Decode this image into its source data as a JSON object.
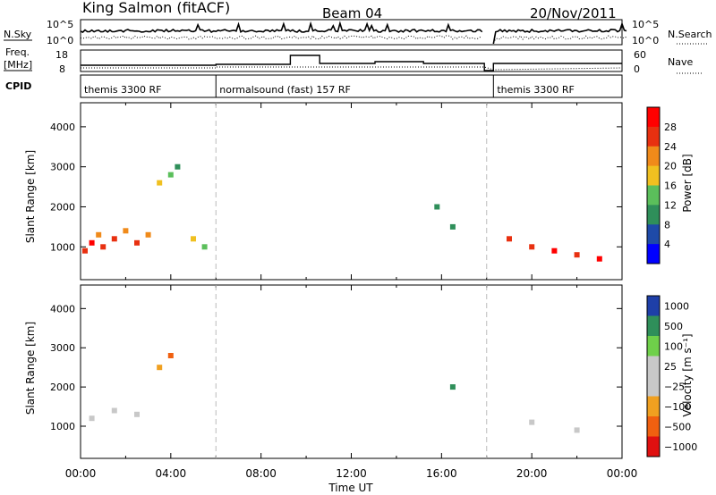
{
  "header": {
    "station": "King Salmon (fitACF)",
    "beam": "Beam 04",
    "date": "20/Nov/2011"
  },
  "status_panels": {
    "nsky_label": "N.Sky",
    "nsky_ticks": [
      "10^5",
      "10^0"
    ],
    "nsearch_label": "N.Search",
    "nsearch_ticks": [
      "10^5",
      "10^0"
    ],
    "freq_label_line1": "Freq.",
    "freq_label_line2": "[MHz]",
    "freq_ticks": [
      "18",
      "8"
    ],
    "nave_label": "Nave",
    "nave_ticks": [
      "60",
      "0"
    ],
    "cpid_label": "CPID",
    "cpid_segments": [
      {
        "label": "themis 3300 RF",
        "start": 0,
        "end": 6
      },
      {
        "label": "normalsound (fast) 157 RF",
        "start": 6,
        "end": 18
      },
      {
        "label": "themis 3300 RF",
        "start": 18.3,
        "end": 24
      }
    ]
  },
  "chart_data": [
    {
      "type": "heatmap",
      "panel": "power",
      "title": "",
      "xlabel": "",
      "ylabel": "Slant Range [km]",
      "xlim": [
        0,
        24
      ],
      "ylim": [
        180,
        4600
      ],
      "y_ticks": [
        1000,
        2000,
        3000,
        4000
      ],
      "colorbar_label": "Power [dB]",
      "colorbar_ticks": [
        4,
        8,
        12,
        16,
        20,
        24,
        28
      ],
      "colorbar_range": [
        0,
        32
      ],
      "colorbar_colors": [
        "#0000ff",
        "#1e4aa8",
        "#2f8f5a",
        "#5bbf5b",
        "#f0c020",
        "#f08a1a",
        "#e83010",
        "#ff0000"
      ],
      "cells": [
        {
          "t": 0.2,
          "r": 900,
          "v": 26
        },
        {
          "t": 0.5,
          "r": 1100,
          "v": 28
        },
        {
          "t": 0.8,
          "r": 1300,
          "v": 22
        },
        {
          "t": 1.0,
          "r": 1000,
          "v": 27
        },
        {
          "t": 1.5,
          "r": 1200,
          "v": 24
        },
        {
          "t": 2.0,
          "r": 1400,
          "v": 20
        },
        {
          "t": 2.5,
          "r": 1100,
          "v": 25
        },
        {
          "t": 3.0,
          "r": 1300,
          "v": 22
        },
        {
          "t": 3.5,
          "r": 2600,
          "v": 18
        },
        {
          "t": 4.0,
          "r": 2800,
          "v": 14
        },
        {
          "t": 4.3,
          "r": 3000,
          "v": 10
        },
        {
          "t": 5.0,
          "r": 1200,
          "v": 16
        },
        {
          "t": 5.5,
          "r": 1000,
          "v": 14
        },
        {
          "t": 15.8,
          "r": 2000,
          "v": 10
        },
        {
          "t": 16.5,
          "r": 1500,
          "v": 8
        },
        {
          "t": 19.0,
          "r": 1200,
          "v": 24
        },
        {
          "t": 20.0,
          "r": 1000,
          "v": 26
        },
        {
          "t": 21.0,
          "r": 900,
          "v": 28
        },
        {
          "t": 22.0,
          "r": 800,
          "v": 26
        },
        {
          "t": 23.0,
          "r": 700,
          "v": 28
        }
      ]
    },
    {
      "type": "heatmap",
      "panel": "velocity",
      "title": "",
      "xlabel": "Time UT",
      "ylabel": "Slant Range [km]",
      "xlim": [
        0,
        24
      ],
      "ylim": [
        180,
        4600
      ],
      "y_ticks": [
        1000,
        2000,
        3000,
        4000
      ],
      "x_tick_labels": [
        "00:00",
        "04:00",
        "08:00",
        "12:00",
        "16:00",
        "20:00",
        "00:00"
      ],
      "colorbar_label": "Velocity [m s⁻¹]",
      "colorbar_ticks": [
        "1000",
        "500",
        "100",
        "25",
        "−25",
        "−100",
        "−500",
        "−1000"
      ],
      "colorbar_colors": [
        "#1e3fa8",
        "#2f8f5a",
        "#6fd04a",
        "#c8c8c8",
        "#c8c8c8",
        "#f0a020",
        "#f06010",
        "#e01010"
      ],
      "cells": [
        {
          "t": 0.5,
          "r": 1200,
          "v": 0
        },
        {
          "t": 1.5,
          "r": 1400,
          "v": 0
        },
        {
          "t": 2.5,
          "r": 1300,
          "v": 0
        },
        {
          "t": 3.5,
          "r": 2500,
          "v": -300
        },
        {
          "t": 4.0,
          "r": 2800,
          "v": -500
        },
        {
          "t": 20.0,
          "r": 1100,
          "v": 0
        },
        {
          "t": 22.0,
          "r": 900,
          "v": 0
        },
        {
          "t": 16.5,
          "r": 2000,
          "v": 150
        }
      ]
    }
  ]
}
